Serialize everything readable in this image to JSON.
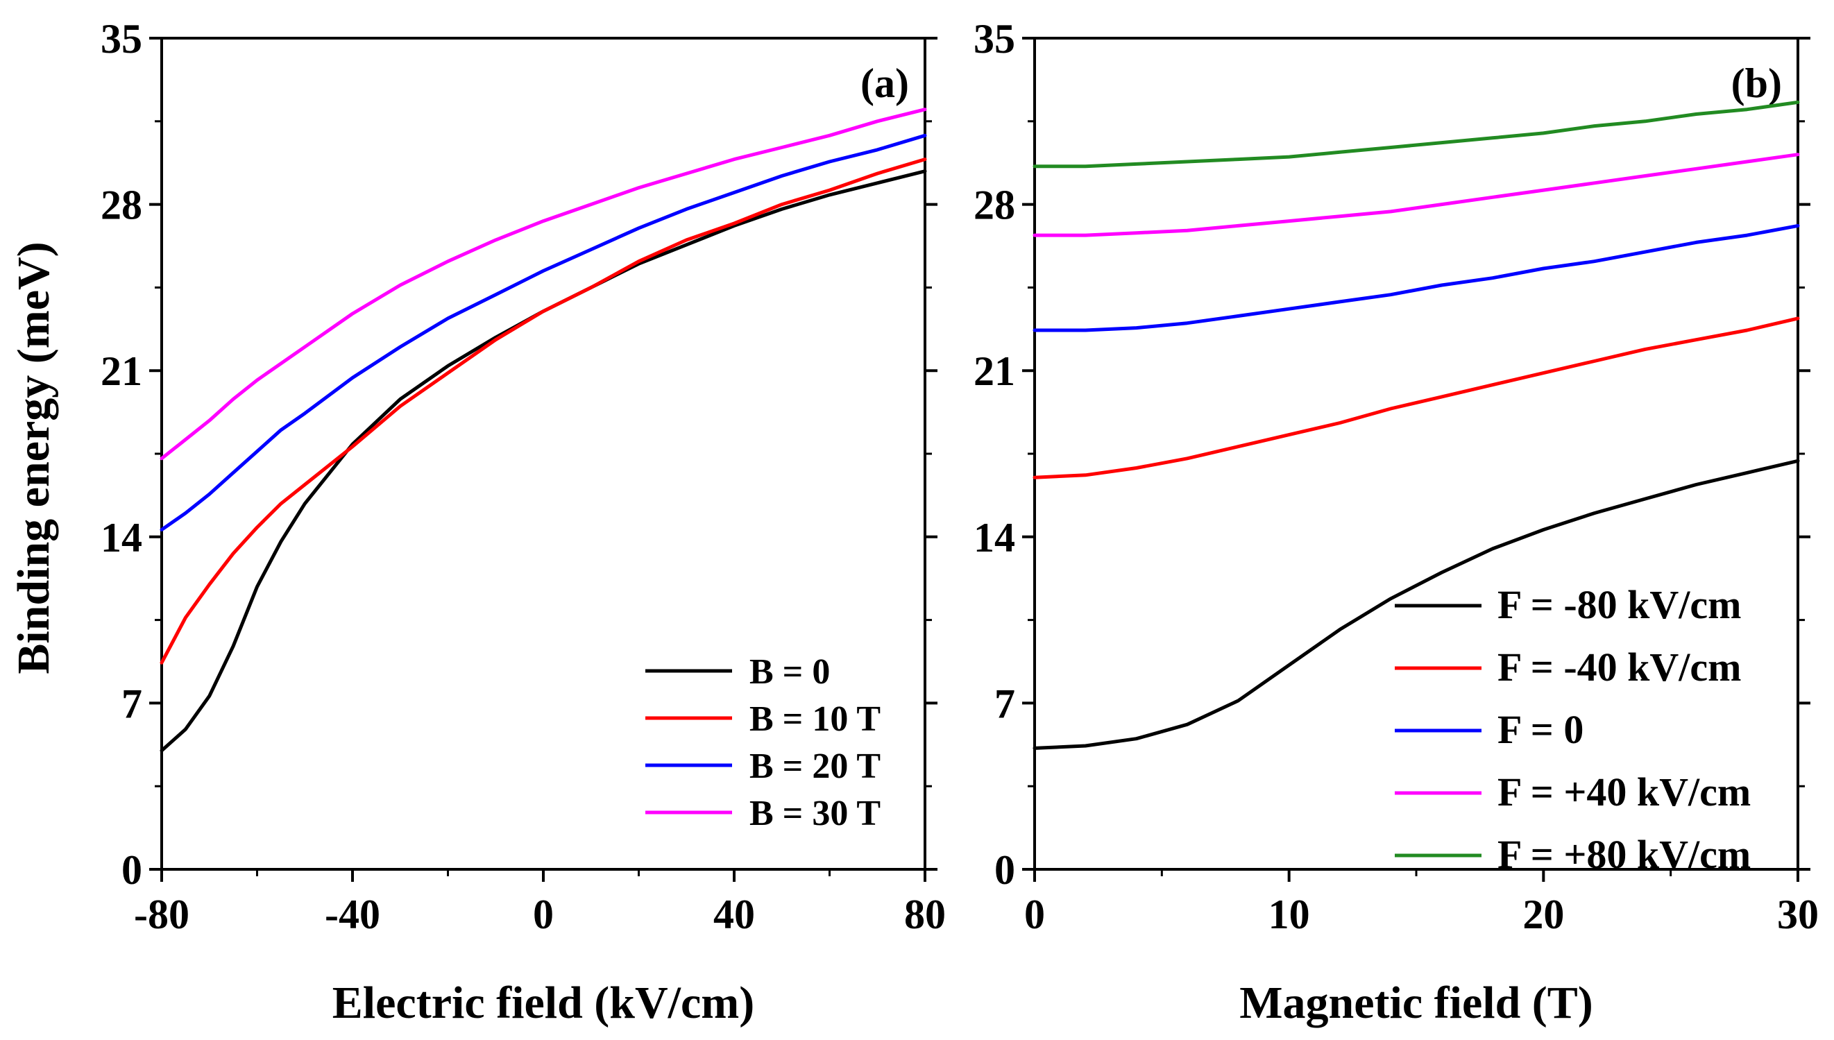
{
  "chart_data": [
    {
      "type": "line",
      "panel_label": "(a)",
      "title": "",
      "xlabel": "Electric field (kV/cm)",
      "ylabel": "Binding energy (meV)",
      "xlim": [
        -80,
        80
      ],
      "ylim": [
        0,
        35
      ],
      "xticks": [
        -80,
        -40,
        0,
        40,
        80
      ],
      "yticks": [
        0,
        7,
        14,
        21,
        28,
        35
      ],
      "grid": false,
      "legend_position": "bottom-right",
      "x": [
        -80,
        -75,
        -70,
        -65,
        -60,
        -55,
        -50,
        -40,
        -30,
        -20,
        -10,
        0,
        10,
        20,
        30,
        40,
        50,
        60,
        70,
        80
      ],
      "series": [
        {
          "name": "B = 0",
          "color": "#000000",
          "values": [
            5.0,
            5.9,
            7.3,
            9.4,
            11.9,
            13.8,
            15.4,
            17.9,
            19.8,
            21.2,
            22.4,
            23.5,
            24.5,
            25.5,
            26.3,
            27.1,
            27.8,
            28.4,
            28.9,
            29.4
          ]
        },
        {
          "name": "B = 10 T",
          "color": "#ff0000",
          "values": [
            8.7,
            10.6,
            12.0,
            13.3,
            14.4,
            15.4,
            16.2,
            17.8,
            19.5,
            20.9,
            22.3,
            23.5,
            24.5,
            25.6,
            26.5,
            27.2,
            28.0,
            28.6,
            29.3,
            29.9
          ]
        },
        {
          "name": "B = 20 T",
          "color": "#0000ff",
          "values": [
            14.3,
            15.0,
            15.8,
            16.7,
            17.6,
            18.5,
            19.2,
            20.7,
            22.0,
            23.2,
            24.2,
            25.2,
            26.1,
            27.0,
            27.8,
            28.5,
            29.2,
            29.8,
            30.3,
            30.9
          ]
        },
        {
          "name": "B = 30 T",
          "color": "#ff00ff",
          "values": [
            17.3,
            18.1,
            18.9,
            19.8,
            20.6,
            21.3,
            22.0,
            23.4,
            24.6,
            25.6,
            26.5,
            27.3,
            28.0,
            28.7,
            29.3,
            29.9,
            30.4,
            30.9,
            31.5,
            32.0
          ]
        }
      ]
    },
    {
      "type": "line",
      "panel_label": "(b)",
      "title": "",
      "xlabel": "Magnetic field (T)",
      "ylabel": "",
      "xlim": [
        0,
        30
      ],
      "ylim": [
        0,
        35
      ],
      "xticks": [
        0,
        10,
        20,
        30
      ],
      "yticks": [
        0,
        7,
        14,
        21,
        28,
        35
      ],
      "grid": false,
      "legend_position": "bottom-right",
      "x": [
        0,
        2,
        4,
        6,
        8,
        10,
        12,
        14,
        16,
        18,
        20,
        22,
        24,
        26,
        28,
        30
      ],
      "series": [
        {
          "name": "F = -80 kV/cm",
          "color": "#000000",
          "values": [
            5.1,
            5.2,
            5.5,
            6.1,
            7.1,
            8.6,
            10.1,
            11.4,
            12.5,
            13.5,
            14.3,
            15.0,
            15.6,
            16.2,
            16.7,
            17.2
          ]
        },
        {
          "name": "F = -40 kV/cm",
          "color": "#ff0000",
          "values": [
            16.5,
            16.6,
            16.9,
            17.3,
            17.8,
            18.3,
            18.8,
            19.4,
            19.9,
            20.4,
            20.9,
            21.4,
            21.9,
            22.3,
            22.7,
            23.2
          ]
        },
        {
          "name": "F = 0",
          "color": "#0000ff",
          "values": [
            22.7,
            22.7,
            22.8,
            23.0,
            23.3,
            23.6,
            23.9,
            24.2,
            24.6,
            24.9,
            25.3,
            25.6,
            26.0,
            26.4,
            26.7,
            27.1
          ]
        },
        {
          "name": "F = +40 kV/cm",
          "color": "#ff00ff",
          "values": [
            26.7,
            26.7,
            26.8,
            26.9,
            27.1,
            27.3,
            27.5,
            27.7,
            28.0,
            28.3,
            28.6,
            28.9,
            29.2,
            29.5,
            29.8,
            30.1
          ]
        },
        {
          "name": "F = +80 kV/cm",
          "color": "#228b22",
          "values": [
            29.6,
            29.6,
            29.7,
            29.8,
            29.9,
            30.0,
            30.2,
            30.4,
            30.6,
            30.8,
            31.0,
            31.3,
            31.5,
            31.8,
            32.0,
            32.3
          ]
        }
      ]
    }
  ]
}
